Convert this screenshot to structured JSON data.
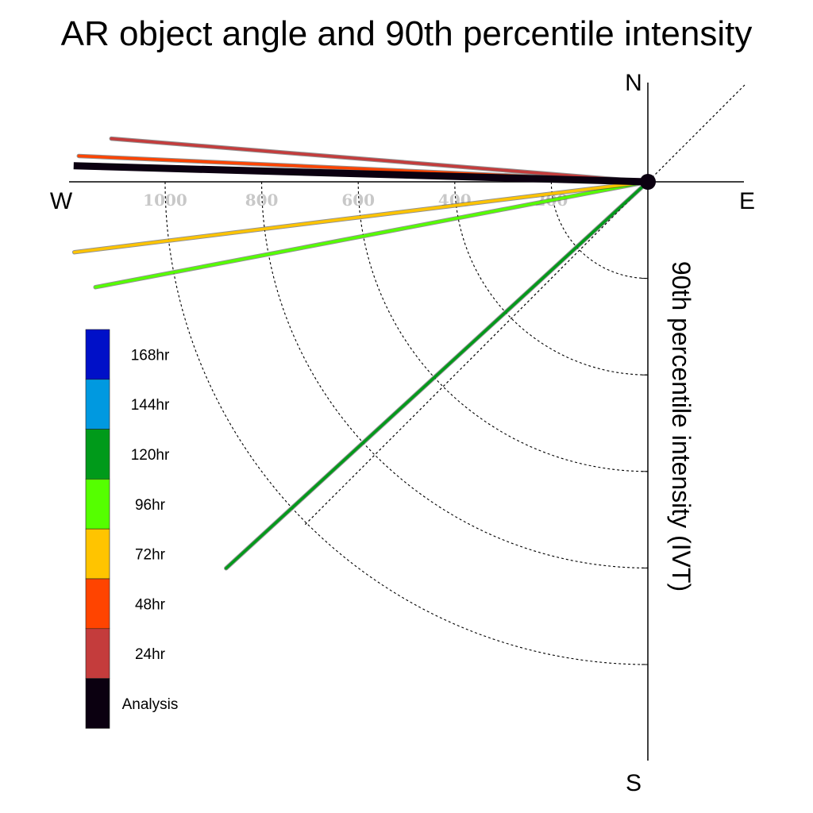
{
  "chart_data": {
    "type": "polar-vector",
    "title": "AR object angle and 90th percentile intensity",
    "ylabel": "90th percentile intensity (IVT)",
    "compass": {
      "north": "N",
      "east": "E",
      "south": "S",
      "west": "W"
    },
    "rings": [
      200,
      400,
      600,
      800,
      1000
    ],
    "ring_labels": [
      "1000",
      "800",
      "600",
      "400",
      "200"
    ],
    "radial_range": [
      0,
      1200
    ],
    "series": [
      {
        "name": "Analysis",
        "color": "#0b0010",
        "angle_deg": -1.6,
        "intensity": 1190
      },
      {
        "name": "24hr",
        "color": "#c43c3c",
        "angle_deg": -4.6,
        "intensity": 1115
      },
      {
        "name": "48hr",
        "color": "#ff4400",
        "angle_deg": -2.6,
        "intensity": 1180
      },
      {
        "name": "72hr",
        "color": "#ffc400",
        "angle_deg": 7.0,
        "intensity": 1197
      },
      {
        "name": "96hr",
        "color": "#55ff00",
        "angle_deg": 10.8,
        "intensity": 1165
      },
      {
        "name": "120hr",
        "color": "#009a1a",
        "angle_deg": 42.5,
        "intensity": 1185
      }
    ],
    "legend": [
      {
        "label": "168hr",
        "color": "#0010c8"
      },
      {
        "label": "144hr",
        "color": "#0099e0"
      },
      {
        "label": "120hr",
        "color": "#009a1a"
      },
      {
        "label": "96hr",
        "color": "#55ff00"
      },
      {
        "label": "72hr",
        "color": "#ffc400"
      },
      {
        "label": "48hr",
        "color": "#ff4400"
      },
      {
        "label": "24hr",
        "color": "#c43c3c"
      },
      {
        "label": "Analysis",
        "color": "#0b0010"
      }
    ]
  }
}
